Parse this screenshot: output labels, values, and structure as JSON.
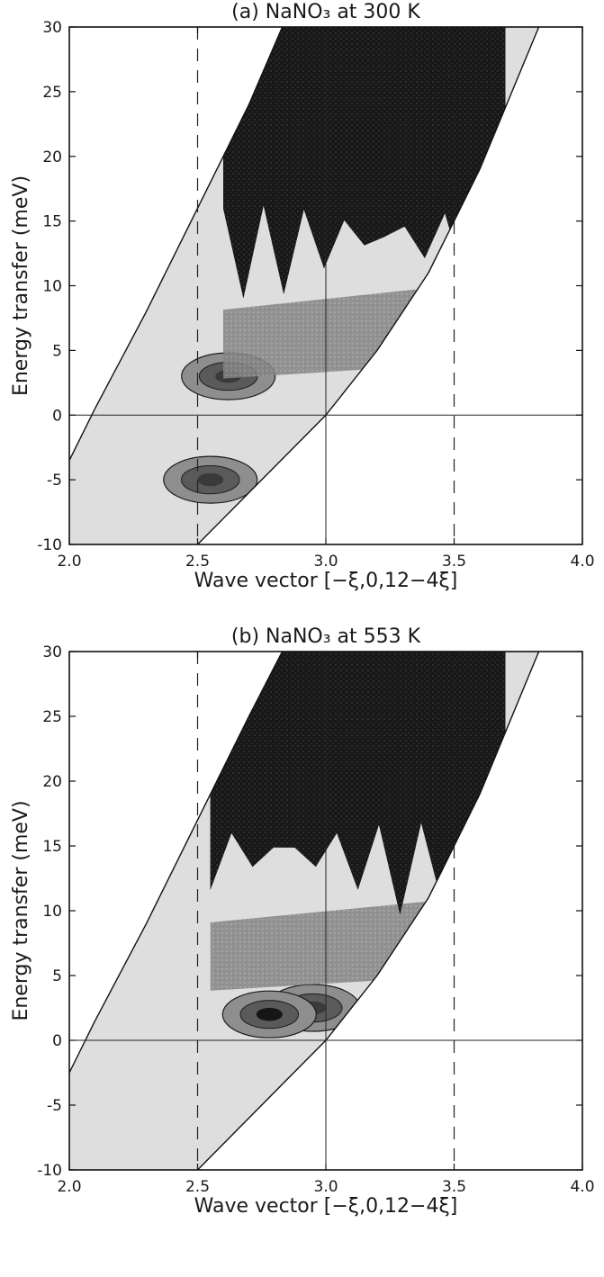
{
  "figure": {
    "panels_count": 2
  },
  "chart_data": [
    {
      "type": "heatmap",
      "title": "(a) NaNO₃ at 300 K",
      "xlabel": "Wave vector [−ξ,0,12−4ξ]",
      "ylabel": "Energy transfer (meV)",
      "xlim": [
        2.0,
        4.0
      ],
      "ylim": [
        -10,
        30
      ],
      "x_ticks": [
        "2.0",
        "2.5",
        "3.0",
        "3.5",
        "4.0"
      ],
      "y_ticks": [
        "-10",
        "-5",
        "0",
        "5",
        "10",
        "15",
        "20",
        "25",
        "30"
      ],
      "x_tick_values": [
        2.0,
        2.5,
        3.0,
        3.5,
        4.0
      ],
      "y_tick_values": [
        -10,
        -5,
        0,
        5,
        10,
        15,
        20,
        25,
        30
      ],
      "reference_lines": {
        "dashed_vertical_x": [
          2.5,
          3.5
        ],
        "solid_vertical_x": [
          3.0
        ],
        "solid_horizontal_y": [
          0
        ]
      },
      "kinematic_boundary": {
        "left_edge": [
          [
            2.0,
            -3.5
          ],
          [
            2.1,
            0.5
          ],
          [
            2.3,
            8
          ],
          [
            2.5,
            16
          ],
          [
            2.7,
            24
          ],
          [
            2.83,
            30
          ]
        ],
        "right_edge": [
          [
            2.5,
            -10
          ],
          [
            2.7,
            -6
          ],
          [
            2.9,
            -2
          ],
          [
            3.0,
            0
          ],
          [
            3.2,
            5
          ],
          [
            3.4,
            11
          ],
          [
            3.6,
            19
          ],
          [
            3.83,
            30
          ]
        ]
      },
      "intensity_levels": [
        "light",
        "medium",
        "dark"
      ],
      "features": [
        {
          "label": "low-intensity region",
          "x_range": [
            2.1,
            3.1
          ],
          "y_range": [
            -3,
            7
          ],
          "level": "light"
        },
        {
          "label": "feature near +3 meV",
          "center": [
            2.62,
            3.0
          ],
          "level": "medium"
        },
        {
          "label": "feature near -5 meV",
          "center": [
            2.55,
            -5.0
          ],
          "level": "medium"
        },
        {
          "label": "high-intensity region",
          "x_range": [
            2.6,
            3.7
          ],
          "y_range": [
            7,
            30
          ],
          "level": "dark"
        }
      ]
    },
    {
      "type": "heatmap",
      "title": "(b) NaNO₃ at 553 K",
      "xlabel": "Wave vector [−ξ,0,12−4ξ]",
      "ylabel": "Energy transfer (meV)",
      "xlim": [
        2.0,
        4.0
      ],
      "ylim": [
        -10,
        30
      ],
      "x_ticks": [
        "2.0",
        "2.5",
        "3.0",
        "3.5",
        "4.0"
      ],
      "y_ticks": [
        "-10",
        "-5",
        "0",
        "5",
        "10",
        "15",
        "20",
        "25",
        "30"
      ],
      "x_tick_values": [
        2.0,
        2.5,
        3.0,
        3.5,
        4.0
      ],
      "y_tick_values": [
        -10,
        -5,
        0,
        5,
        10,
        15,
        20,
        25,
        30
      ],
      "reference_lines": {
        "dashed_vertical_x": [
          2.5,
          3.5
        ],
        "solid_vertical_x": [
          3.0
        ],
        "solid_horizontal_y": [
          0
        ]
      },
      "kinematic_boundary": {
        "left_edge": [
          [
            2.0,
            -2.5
          ],
          [
            2.1,
            1.5
          ],
          [
            2.3,
            9
          ],
          [
            2.5,
            17
          ],
          [
            2.7,
            25
          ],
          [
            2.83,
            30
          ]
        ],
        "right_edge": [
          [
            2.5,
            -10
          ],
          [
            2.7,
            -6
          ],
          [
            2.9,
            -2
          ],
          [
            3.0,
            0
          ],
          [
            3.2,
            5
          ],
          [
            3.4,
            11
          ],
          [
            3.6,
            19
          ],
          [
            3.83,
            30
          ]
        ]
      },
      "intensity_levels": [
        "light",
        "medium",
        "dark"
      ],
      "features": [
        {
          "label": "low-intensity region",
          "x_range": [
            2.05,
            2.55
          ],
          "y_range": [
            -2,
            5
          ],
          "level": "light"
        },
        {
          "label": "light region near 2.95",
          "center": [
            2.95,
            2.5
          ],
          "level": "light"
        },
        {
          "label": "feature near +2 meV",
          "center": [
            2.78,
            2.0
          ],
          "level": "dark"
        },
        {
          "label": "high-intensity region",
          "x_range": [
            2.55,
            3.7
          ],
          "y_range": [
            8,
            30
          ],
          "level": "dark"
        }
      ]
    }
  ],
  "colors": {
    "axis": "#111111",
    "light": "#dedede",
    "medium": "#8e8e8e",
    "mediumDark": "#5a5a5a",
    "dark": "#161616",
    "contour": "#1c1c1c"
  }
}
